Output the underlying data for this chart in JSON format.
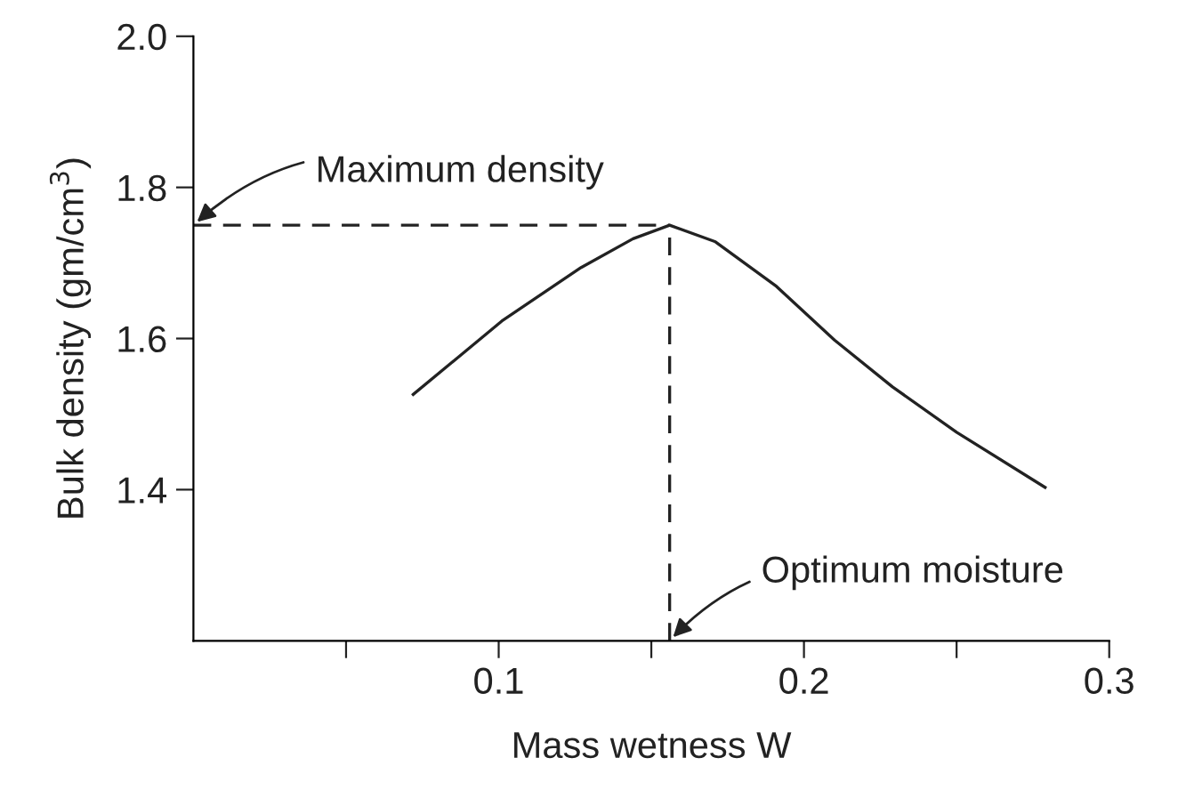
{
  "chart_data": {
    "type": "line",
    "xlabel": "Mass wetness W",
    "ylabel": "Bulk density (gm/cm$^{3}$)",
    "xlim": [
      0,
      0.3
    ],
    "ylim": [
      1.2,
      2.0
    ],
    "xticks": [
      {
        "value": 0.05,
        "label": null
      },
      0.1,
      {
        "value": 0.15,
        "label": null
      },
      0.2,
      {
        "value": 0.25,
        "label": null
      },
      0.3
    ],
    "yticks": [
      1.4,
      1.6,
      1.8,
      {
        "value": 2.0,
        "label": "2.0"
      }
    ],
    "grid": false,
    "legend": false,
    "marker": "none",
    "series": [
      {
        "color": "#222222",
        "line_style": "solid",
        "x": [
          0.072,
          0.101,
          0.127,
          0.144,
          0.156,
          0.171,
          0.191,
          0.21,
          0.229,
          0.25,
          0.279
        ],
        "values": [
          1.526,
          1.623,
          1.694,
          1.732,
          1.75,
          1.728,
          1.669,
          1.598,
          1.536,
          1.476,
          1.403
        ]
      },
      {
        "color": "#222222",
        "line_style": "dashed",
        "x": [
          0,
          0.156
        ],
        "values": [
          1.75,
          1.75
        ]
      },
      {
        "color": "#222222",
        "line_style": "dashed",
        "x": [
          0.156,
          0.156
        ],
        "values": [
          1.2,
          1.75
        ]
      }
    ],
    "annotations": [
      {
        "text": "Maximum density",
        "x": 0,
        "y": 1.75
      },
      {
        "text": "Optimum moisture",
        "x": 0.156,
        "y": 1.2
      }
    ]
  }
}
